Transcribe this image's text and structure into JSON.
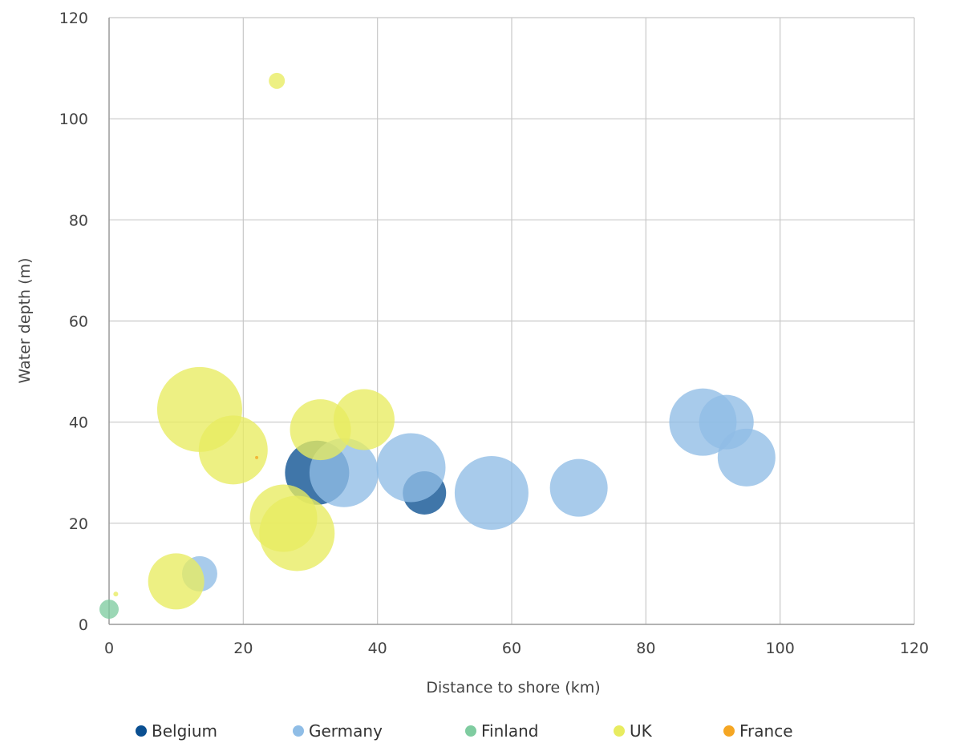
{
  "chart_data": {
    "type": "scatter",
    "xlabel": "Distance to shore (km)",
    "ylabel": "Water depth (m)",
    "xlim": [
      0,
      120
    ],
    "ylim": [
      0,
      120
    ],
    "x_ticks": [
      "0",
      "20",
      "40",
      "60",
      "80",
      "100",
      "120"
    ],
    "y_ticks": [
      "0",
      "20",
      "40",
      "60",
      "80",
      "100",
      "120"
    ],
    "grid": true,
    "legend_position": "bottom",
    "series": [
      {
        "name": "Belgium",
        "color": "#0a4f91",
        "points": [
          {
            "x": 31,
            "y": 30,
            "size": 40
          },
          {
            "x": 47,
            "y": 26,
            "size": 27
          }
        ]
      },
      {
        "name": "Germany",
        "color": "#8fbde6",
        "points": [
          {
            "x": 13.5,
            "y": 10,
            "size": 22
          },
          {
            "x": 35,
            "y": 30,
            "size": 43
          },
          {
            "x": 45,
            "y": 31,
            "size": 43
          },
          {
            "x": 57,
            "y": 26,
            "size": 46
          },
          {
            "x": 70,
            "y": 27,
            "size": 36
          },
          {
            "x": 88.5,
            "y": 40,
            "size": 42
          },
          {
            "x": 92,
            "y": 40,
            "size": 34
          },
          {
            "x": 95,
            "y": 33,
            "size": 36
          }
        ]
      },
      {
        "name": "Finland",
        "color": "#7fcca0",
        "points": [
          {
            "x": 0,
            "y": 3,
            "size": 12
          }
        ]
      },
      {
        "name": "UK",
        "color": "#e8ec60",
        "points": [
          {
            "x": 25,
            "y": 107.5,
            "size": 10
          },
          {
            "x": 1,
            "y": 6,
            "size": 3
          },
          {
            "x": 10,
            "y": 8.5,
            "size": 35
          },
          {
            "x": 13.5,
            "y": 42.5,
            "size": 53
          },
          {
            "x": 18.5,
            "y": 34.5,
            "size": 43
          },
          {
            "x": 26,
            "y": 21,
            "size": 42
          },
          {
            "x": 28,
            "y": 18,
            "size": 47
          },
          {
            "x": 31.5,
            "y": 38.5,
            "size": 38
          },
          {
            "x": 38,
            "y": 40.5,
            "size": 38
          }
        ]
      },
      {
        "name": "France",
        "color": "#f5a623",
        "points": [
          {
            "x": 22,
            "y": 33,
            "size": 2
          }
        ]
      }
    ]
  }
}
